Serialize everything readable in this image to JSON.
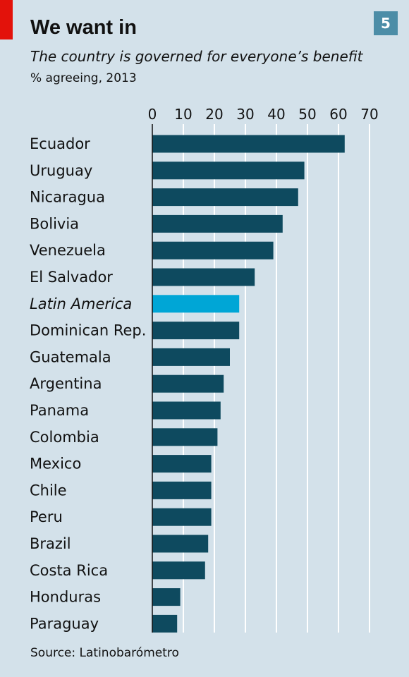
{
  "header": {
    "title": "We want in",
    "subtitle": "The country is governed for everyone’s benefit",
    "unit_note": "% agreeing, 2013",
    "chart_number": "5"
  },
  "footer": {
    "source": "Source: Latinobarómetro"
  },
  "colors": {
    "background": "#d3e1ea",
    "bar": "#0e4a5f",
    "highlight_bar": "#00a6d6",
    "red_tab": "#e3120b",
    "number_box": "#4c8da7",
    "gridline": "#ffffff"
  },
  "chart_data": {
    "type": "bar",
    "orientation": "horizontal",
    "title": "We want in",
    "subtitle": "The country is governed for everyone’s benefit",
    "xlabel": "% agreeing, 2013",
    "ylabel": "",
    "xlim": [
      0,
      70
    ],
    "x_ticks": [
      0,
      10,
      20,
      30,
      40,
      50,
      60,
      70
    ],
    "grid": true,
    "legend": "none",
    "categories": [
      "Ecuador",
      "Uruguay",
      "Nicaragua",
      "Bolivia",
      "Venezuela",
      "El Salvador",
      "Latin America",
      "Dominican Rep.",
      "Guatemala",
      "Argentina",
      "Panama",
      "Colombia",
      "Mexico",
      "Chile",
      "Peru",
      "Brazil",
      "Costa Rica",
      "Honduras",
      "Paraguay"
    ],
    "values": [
      62,
      49,
      47,
      42,
      39,
      33,
      28,
      28,
      25,
      23,
      22,
      21,
      19,
      19,
      19,
      18,
      17,
      9,
      8
    ],
    "highlight": "Latin America"
  }
}
